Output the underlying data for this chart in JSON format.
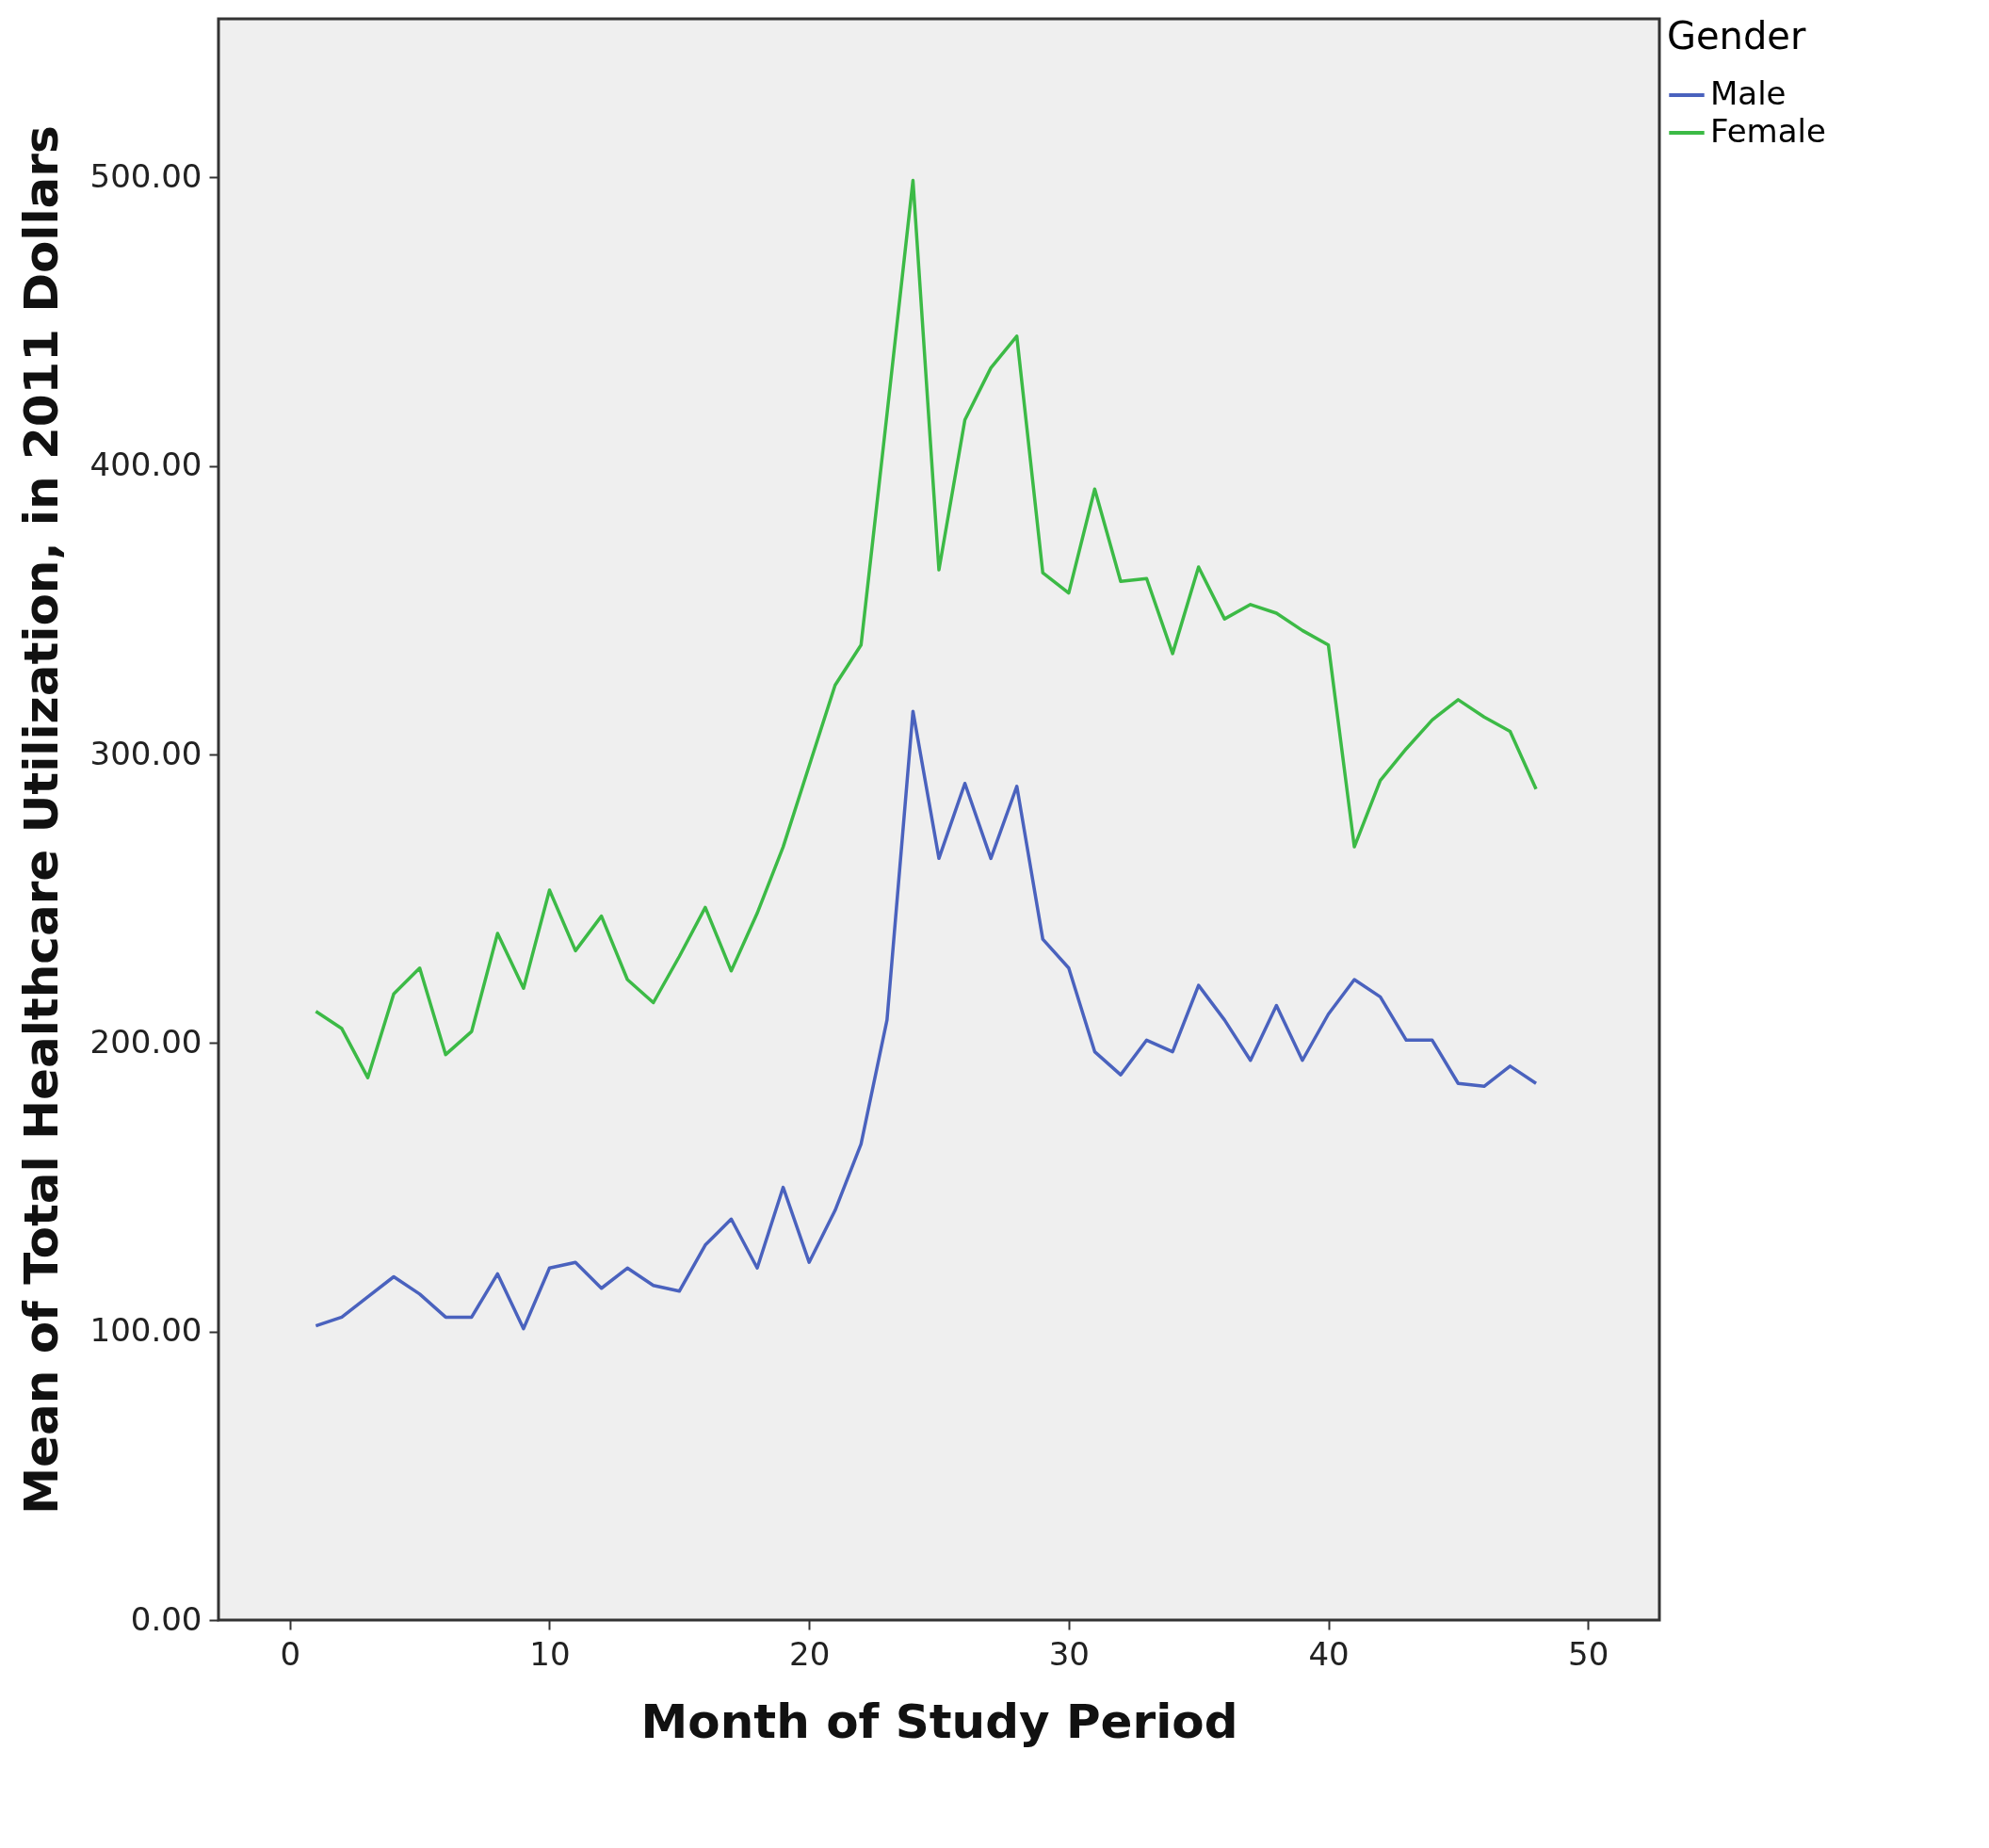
{
  "chart_data": {
    "type": "line",
    "xlabel": "Month of Study Period",
    "ylabel": "Mean of Total Healthcare Utilization, in 2011 Dollars",
    "legend_title": "Gender",
    "x": [
      1,
      2,
      3,
      4,
      5,
      6,
      7,
      8,
      9,
      10,
      11,
      12,
      13,
      14,
      15,
      16,
      17,
      18,
      19,
      20,
      21,
      22,
      23,
      24,
      25,
      26,
      27,
      28,
      29,
      30,
      31,
      32,
      33,
      34,
      35,
      36,
      37,
      38,
      39,
      40,
      41,
      42,
      43,
      44,
      45,
      46,
      47,
      48
    ],
    "series": [
      {
        "name": "Male",
        "color": "#4a62be",
        "values": [
          102,
          105,
          112,
          119,
          113,
          105,
          105,
          120,
          101,
          122,
          124,
          115,
          122,
          116,
          114,
          130,
          139,
          122,
          150,
          124,
          142,
          165,
          208,
          315,
          264,
          290,
          264,
          289,
          236,
          226,
          197,
          189,
          201,
          197,
          220,
          208,
          194,
          213,
          194,
          210,
          222,
          216,
          201,
          201,
          186,
          185,
          192,
          186
        ]
      },
      {
        "name": "Female",
        "color": "#3cba46",
        "values": [
          211,
          205,
          188,
          217,
          226,
          196,
          204,
          238,
          219,
          253,
          232,
          244,
          222,
          214,
          230,
          247,
          225,
          245,
          268,
          296,
          324,
          338,
          418,
          499,
          364,
          416,
          434,
          445,
          363,
          356,
          392,
          360,
          361,
          335,
          365,
          347,
          352,
          349,
          343,
          338,
          268,
          291,
          302,
          312,
          319,
          313,
          308,
          288
        ]
      }
    ],
    "xlim": [
      -2.75,
      52.75
    ],
    "xticks": [
      0,
      10,
      20,
      30,
      40,
      50
    ],
    "ylim": [
      0,
      555
    ],
    "yticks": [
      {
        "value": 0,
        "label": "0.00"
      },
      {
        "value": 100,
        "label": "100.00"
      },
      {
        "value": 200,
        "label": "200.00"
      },
      {
        "value": 300,
        "label": "300.00"
      },
      {
        "value": 400,
        "label": "400.00"
      },
      {
        "value": 500,
        "label": "500.00"
      }
    ],
    "grid": false,
    "legend": "top right",
    "marker": "none",
    "line_style": "solid"
  }
}
